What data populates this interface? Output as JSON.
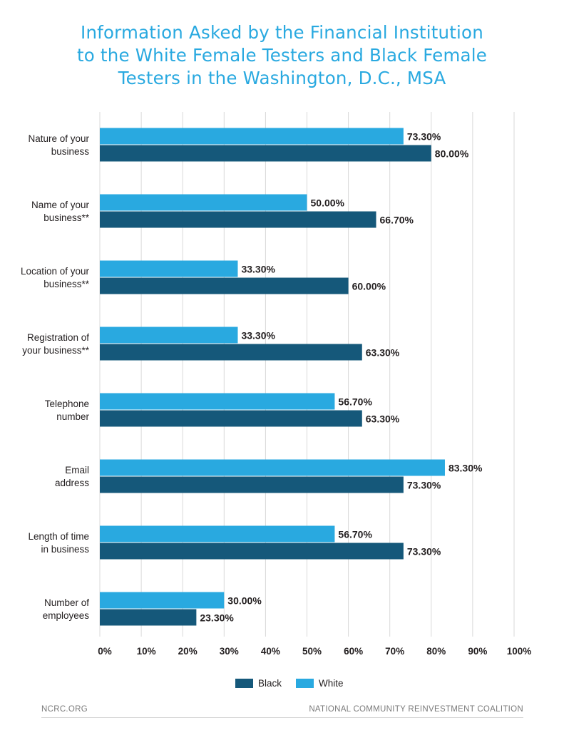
{
  "title_lines": [
    "Information Asked by the Financial Institution",
    "to the White Female Testers and Black Female",
    "Testers in the Washington, D.C., MSA"
  ],
  "footer": {
    "left": "NCRC.ORG",
    "right": "NATIONAL COMMUNITY REINVESTMENT COALITION"
  },
  "colors": {
    "white_series": "#29a9e0",
    "black_series": "#15587a",
    "title": "#29a9e0",
    "grid": "#d9d9d9"
  },
  "chart_data": {
    "type": "bar",
    "orientation": "horizontal",
    "categories": [
      [
        "Nature of your",
        "business"
      ],
      [
        "Name of your",
        "business**"
      ],
      [
        "Location of your",
        "business**"
      ],
      [
        "Registration of",
        "your business**"
      ],
      [
        "Telephone",
        "number"
      ],
      [
        "Email",
        "address"
      ],
      [
        "Length of time",
        "in business"
      ],
      [
        "Number of",
        "employees"
      ]
    ],
    "series": [
      {
        "name": "White",
        "color": "#29a9e0",
        "values": [
          73.3,
          50.0,
          33.3,
          33.3,
          56.7,
          83.3,
          56.7,
          30.0
        ],
        "labels": [
          "73.30%",
          "50.00%",
          "33.30%",
          "33.30%",
          "56.70%",
          "83.30%",
          "56.70%",
          "30.00%"
        ]
      },
      {
        "name": "Black",
        "color": "#15587a",
        "values": [
          80.0,
          66.7,
          60.0,
          63.3,
          63.3,
          73.3,
          73.3,
          23.3
        ],
        "labels": [
          "80.00%",
          "66.70%",
          "60.00%",
          "63.30%",
          "63.30%",
          "73.30%",
          "73.30%",
          "23.30%"
        ]
      }
    ],
    "xticks": [
      "0%",
      "10%",
      "20%",
      "30%",
      "40%",
      "50%",
      "60%",
      "70%",
      "80%",
      "90%",
      "100%"
    ],
    "xlim": [
      0,
      100
    ],
    "grid": true,
    "legend": {
      "placement": "bottom-center",
      "order": [
        "Black",
        "White"
      ]
    }
  }
}
